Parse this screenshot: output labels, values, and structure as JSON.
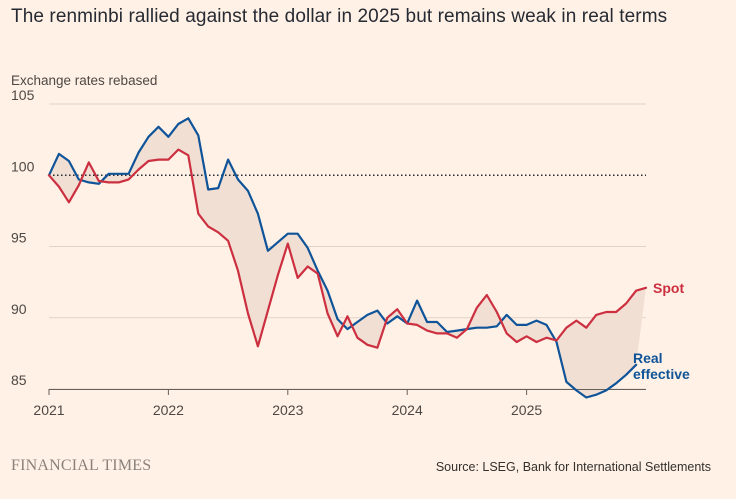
{
  "header": {
    "title": "The renminbi rallied against the dollar in 2025 but remains weak in real terms",
    "subtitle": "Exchange rates rebased"
  },
  "footer": {
    "brand": "FINANCIAL TIMES",
    "source": "Source: LSEG, Bank for International Settlements"
  },
  "colors": {
    "background": "#FFF1E5",
    "spot": "#CC3040",
    "real_effective": "#0F5499",
    "gap_fill": "#F2DFD3",
    "gridline": "#E1D3C8",
    "reference_line": "#262A33"
  },
  "chart_data": {
    "type": "line",
    "title": "The renminbi rallied against the dollar in 2025 but remains weak in real terms",
    "ylabel": "Exchange rates rebased",
    "xlabel": "",
    "xlim": [
      2021.0,
      2026.0
    ],
    "ylim": [
      84,
      105
    ],
    "yticks": [
      85,
      90,
      95,
      100,
      105
    ],
    "xticks": [
      {
        "value": 2021,
        "label": "2021"
      },
      {
        "value": 2022,
        "label": "2022"
      },
      {
        "value": 2023,
        "label": "2023"
      },
      {
        "value": 2024,
        "label": "2024"
      },
      {
        "value": 2025,
        "label": "2025"
      }
    ],
    "reference_line": {
      "y": 100,
      "style": "dotted"
    },
    "shaded_gap_between_series": true,
    "series": [
      {
        "name": "Spot",
        "label": "Spot",
        "color": "#CC3040",
        "x": [
          2021.0,
          2021.083,
          2021.167,
          2021.25,
          2021.333,
          2021.417,
          2021.5,
          2021.583,
          2021.667,
          2021.75,
          2021.833,
          2021.917,
          2022.0,
          2022.083,
          2022.167,
          2022.25,
          2022.333,
          2022.417,
          2022.5,
          2022.583,
          2022.667,
          2022.75,
          2022.833,
          2022.917,
          2023.0,
          2023.083,
          2023.167,
          2023.25,
          2023.333,
          2023.417,
          2023.5,
          2023.583,
          2023.667,
          2023.75,
          2023.833,
          2023.917,
          2024.0,
          2024.083,
          2024.167,
          2024.25,
          2024.333,
          2024.417,
          2024.5,
          2024.583,
          2024.667,
          2024.75,
          2024.833,
          2024.917,
          2025.0,
          2025.083,
          2025.167,
          2025.25,
          2025.333,
          2025.417,
          2025.5,
          2025.583,
          2025.667,
          2025.75,
          2025.833,
          2025.917,
          2026.0
        ],
        "values": [
          100.0,
          99.2,
          98.1,
          99.3,
          100.9,
          99.6,
          99.5,
          99.5,
          99.7,
          100.4,
          101.0,
          101.1,
          101.1,
          101.8,
          101.4,
          97.3,
          96.4,
          96.0,
          95.4,
          93.3,
          90.3,
          88.0,
          90.5,
          93.0,
          95.2,
          92.8,
          93.6,
          93.1,
          90.3,
          88.7,
          90.1,
          88.6,
          88.1,
          87.9,
          90.0,
          90.6,
          89.6,
          89.5,
          89.1,
          88.9,
          88.9,
          88.6,
          89.2,
          90.7,
          91.6,
          90.4,
          88.9,
          88.3,
          88.7,
          88.3,
          88.6,
          88.4,
          89.3,
          89.8,
          89.3,
          90.2,
          90.4,
          90.4,
          91.0,
          91.9,
          92.1
        ]
      },
      {
        "name": "Real effective",
        "label": "Real effective",
        "color": "#0F5499",
        "x": [
          2021.0,
          2021.083,
          2021.167,
          2021.25,
          2021.333,
          2021.417,
          2021.5,
          2021.583,
          2021.667,
          2021.75,
          2021.833,
          2021.917,
          2022.0,
          2022.083,
          2022.167,
          2022.25,
          2022.333,
          2022.417,
          2022.5,
          2022.583,
          2022.667,
          2022.75,
          2022.833,
          2022.917,
          2023.0,
          2023.083,
          2023.167,
          2023.25,
          2023.333,
          2023.417,
          2023.5,
          2023.583,
          2023.667,
          2023.75,
          2023.833,
          2023.917,
          2024.0,
          2024.083,
          2024.167,
          2024.25,
          2024.333,
          2024.417,
          2024.5,
          2024.583,
          2024.667,
          2024.75,
          2024.833,
          2024.917,
          2025.0,
          2025.083,
          2025.167,
          2025.25,
          2025.333,
          2025.417,
          2025.5,
          2025.583,
          2025.667,
          2025.75,
          2025.833,
          2025.917,
          2026.0
        ],
        "values": [
          100.0,
          101.5,
          101.0,
          99.7,
          99.5,
          99.4,
          100.1,
          100.1,
          100.1,
          101.6,
          102.7,
          103.4,
          102.7,
          103.6,
          104.0,
          102.8,
          99.0,
          99.1,
          101.1,
          99.7,
          98.9,
          97.3,
          94.7,
          95.3,
          95.9,
          95.9,
          94.9,
          93.3,
          91.9,
          89.9,
          89.2,
          89.7,
          90.2,
          90.5,
          89.6,
          90.1,
          89.6,
          91.2,
          89.7,
          89.7,
          89.0,
          89.1,
          89.2,
          89.3,
          89.3,
          89.4,
          90.2,
          89.5,
          89.5,
          89.8,
          89.5,
          88.3,
          85.5,
          84.9,
          84.4,
          84.6,
          84.9,
          85.4,
          86.0,
          86.7,
          null
        ]
      }
    ]
  }
}
